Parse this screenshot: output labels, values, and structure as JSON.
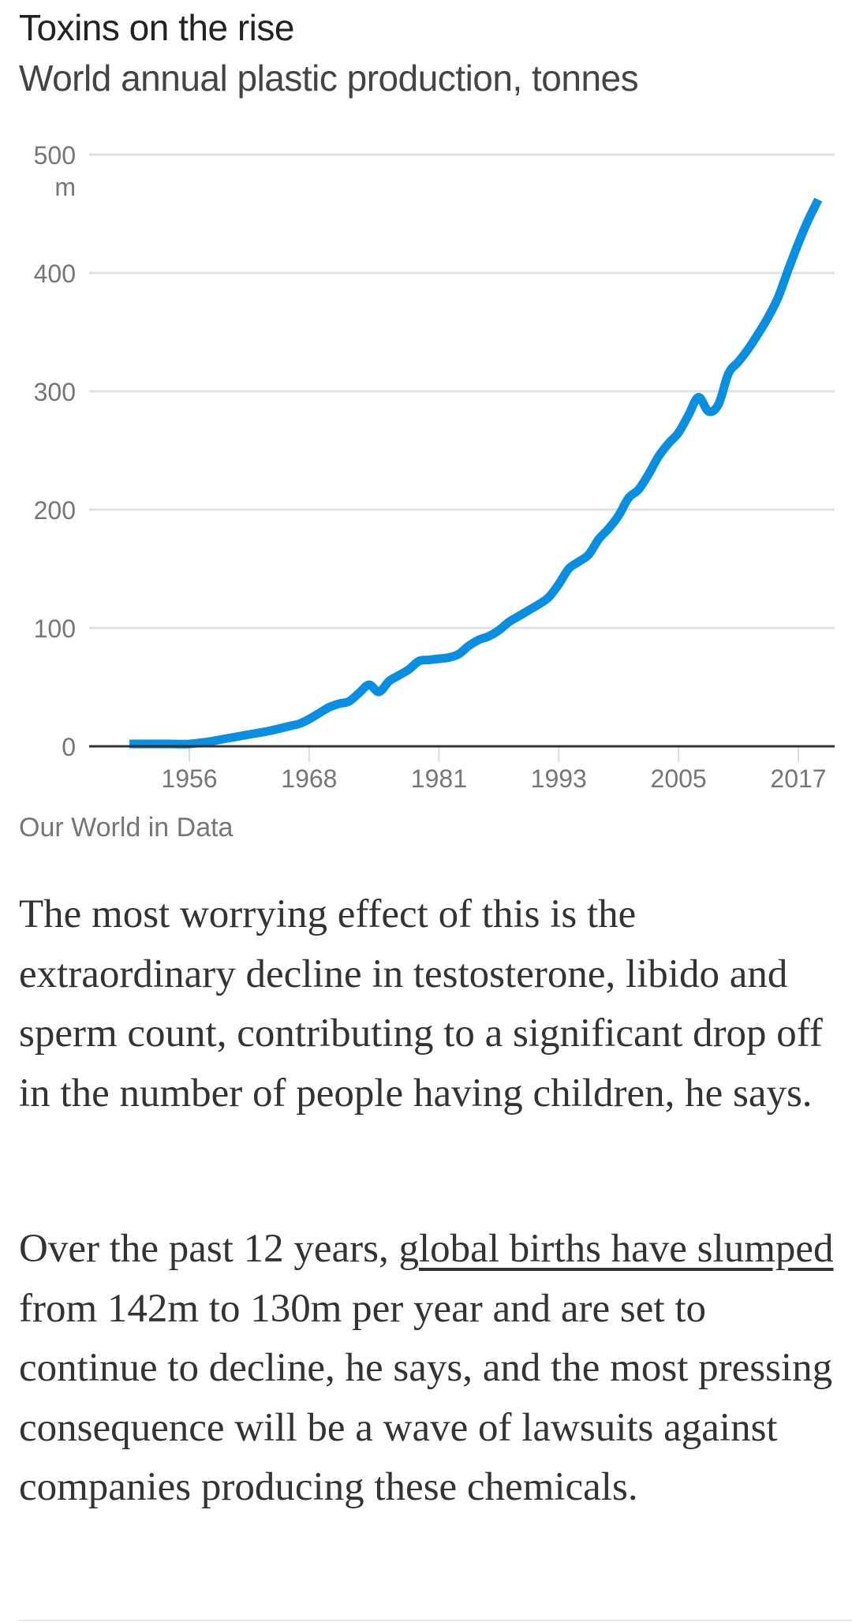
{
  "chart_data": {
    "type": "line",
    "title": "Toxins on the rise",
    "subtitle": "World annual plastic production, tonnes",
    "xlabel": "",
    "ylabel": "",
    "y_unit_label": "m",
    "ylim": [
      0,
      500
    ],
    "xlim": [
      1946,
      2021
    ],
    "y_ticks": [
      0,
      100,
      200,
      300,
      400,
      500
    ],
    "y_tick_labels": [
      "0",
      "100",
      "200",
      "300",
      "400",
      "500"
    ],
    "x_ticks": [
      1956,
      1968,
      1981,
      1993,
      2005,
      2017
    ],
    "x_tick_labels": [
      "1956",
      "1968",
      "1981",
      "1993",
      "2005",
      "2017"
    ],
    "grid": true,
    "legend": "none",
    "series": [
      {
        "name": "World annual plastic production (million tonnes)",
        "color": "#0a8ee0",
        "x": [
          1950,
          1952,
          1954,
          1956,
          1958,
          1960,
          1962,
          1964,
          1966,
          1967,
          1968,
          1969,
          1970,
          1971,
          1972,
          1973,
          1974,
          1975,
          1976,
          1977,
          1978,
          1979,
          1980,
          1981,
          1982,
          1983,
          1984,
          1985,
          1986,
          1987,
          1988,
          1989,
          1990,
          1991,
          1992,
          1993,
          1994,
          1995,
          1996,
          1997,
          1998,
          1999,
          2000,
          2001,
          2002,
          2003,
          2004,
          2005,
          2006,
          2007,
          2008,
          2009,
          2010,
          2011,
          2012,
          2013,
          2014,
          2015,
          2016,
          2017,
          2018,
          2019
        ],
        "values": [
          2,
          2,
          2,
          2,
          4,
          7,
          10,
          13,
          17,
          19,
          23,
          28,
          33,
          36,
          38,
          45,
          52,
          46,
          55,
          60,
          65,
          72,
          73,
          74,
          75,
          78,
          85,
          90,
          93,
          98,
          105,
          110,
          115,
          120,
          126,
          137,
          150,
          156,
          162,
          175,
          184,
          195,
          210,
          217,
          230,
          245,
          256,
          265,
          280,
          295,
          283,
          289,
          315,
          325,
          336,
          349,
          363,
          380,
          403,
          425,
          445,
          462
        ]
      }
    ]
  },
  "source": "Our World in Data",
  "article": {
    "paragraph_1": "The most worrying effect of this is the extraordinary decline in testosterone, libido and sperm count, contributing to a significant drop off in the number of people having children, he says.",
    "paragraph_2_before_link": "Over the past 12 years, ",
    "paragraph_2_link": "global births have slumped",
    "paragraph_2_after_link": " from 142m to 130m per year and are set to continue to decline, he says, and the most pressing consequence will be a wave of lawsuits against companies producing these chemicals."
  }
}
